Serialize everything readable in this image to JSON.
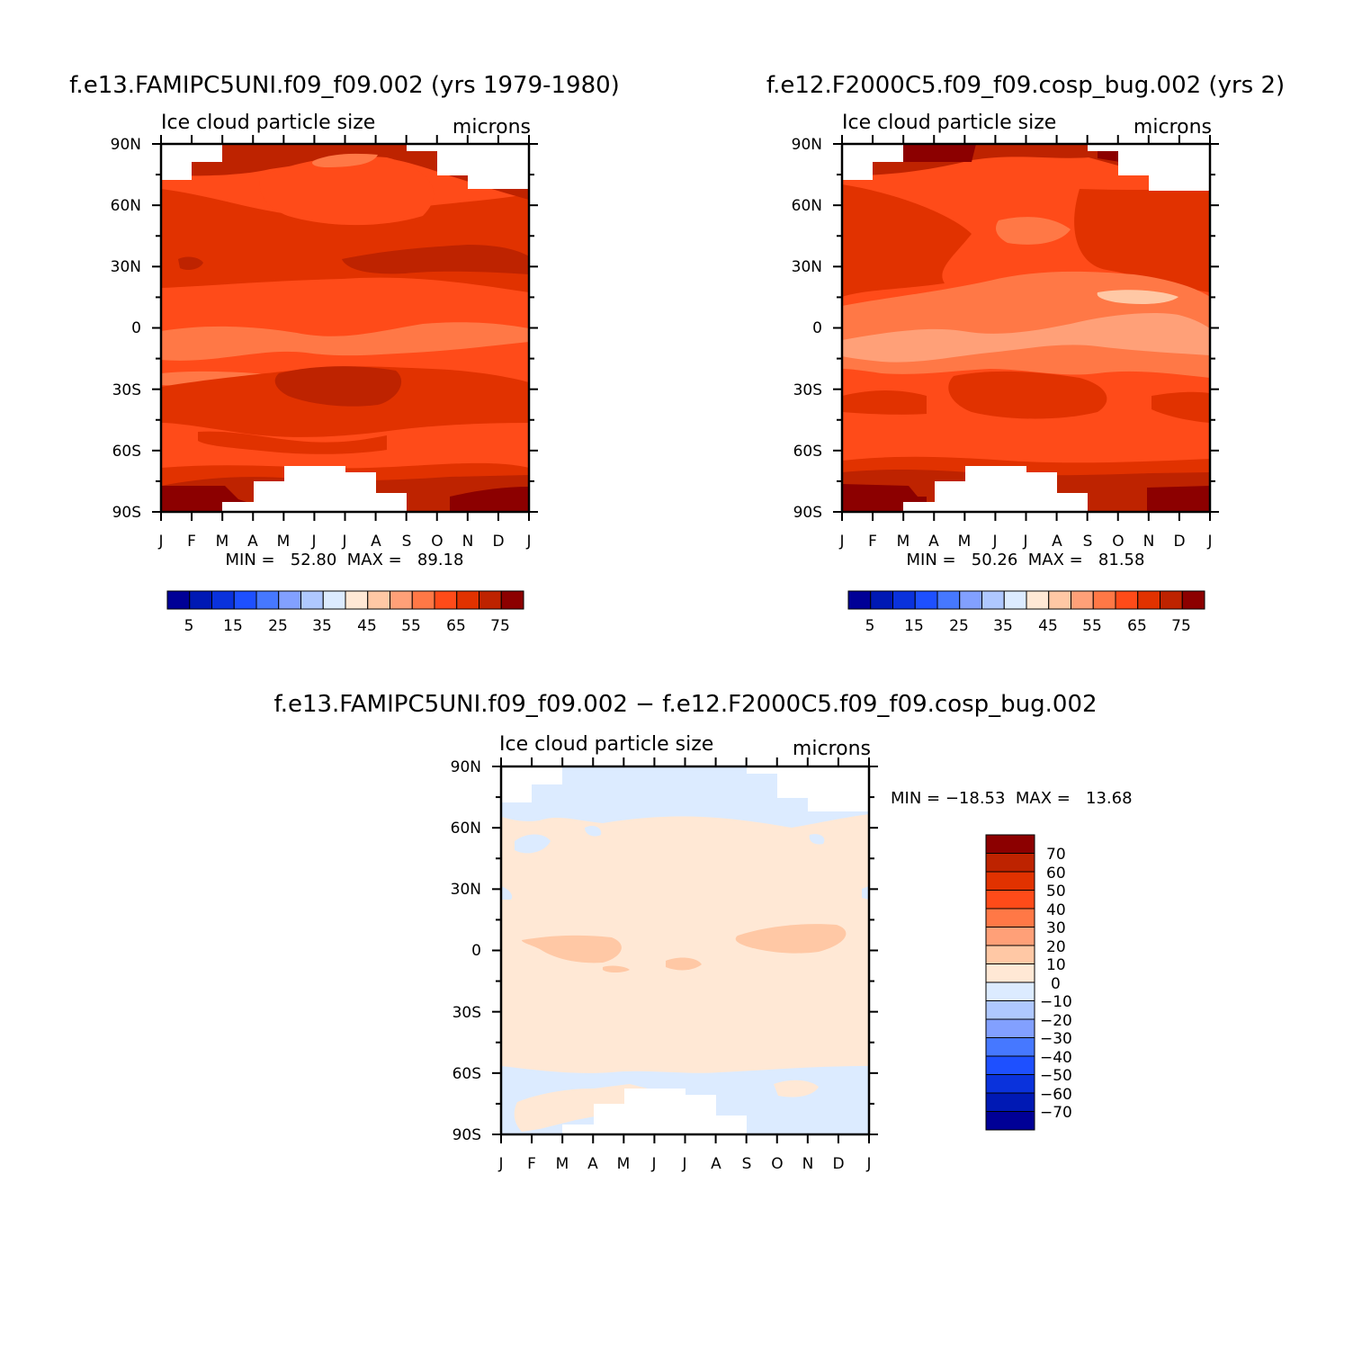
{
  "colors": {
    "abs_palette": [
      "#000096",
      "#0019b4",
      "#0a32dc",
      "#1e50ff",
      "#4678ff",
      "#82a0ff",
      "#afc8ff",
      "#dcebff",
      "#ffe8d5",
      "#ffc8a5",
      "#ffa078",
      "#ff7846",
      "#ff4b19",
      "#e13200",
      "#be2300",
      "#8c0000"
    ],
    "diff_palette": [
      "#000096",
      "#0019b4",
      "#0a32dc",
      "#1e50ff",
      "#4678ff",
      "#82a0ff",
      "#afc8ff",
      "#dcebff",
      "#ffe8d5",
      "#ffc8a5",
      "#ffa078",
      "#ff7846",
      "#ff4b19",
      "#e13200",
      "#be2300",
      "#8c0000"
    ]
  },
  "chart_data": [
    {
      "id": "panel-a",
      "type": "heatmap",
      "title": "f.e13.FAMIPC5UNI.f09_f09.002 (yrs 1979-1980)",
      "left_label": "Ice cloud particle size",
      "right_label": "microns",
      "x_ticks": [
        "J",
        "F",
        "M",
        "A",
        "M",
        "J",
        "J",
        "A",
        "S",
        "O",
        "N",
        "D",
        "J"
      ],
      "y_ticks": [
        "90N",
        "60N",
        "30N",
        "0",
        "30S",
        "60S",
        "90S"
      ],
      "y_range": [
        -90,
        90
      ],
      "stats": "MIN =   52.80  MAX =   89.18",
      "min": 52.8,
      "max": 89.18,
      "levels": [
        "5",
        "15",
        "25",
        "35",
        "45",
        "55",
        "65",
        "75"
      ],
      "legend_placement": "bottom"
    },
    {
      "id": "panel-b",
      "type": "heatmap",
      "title": "f.e12.F2000C5.f09_f09.cosp_bug.002 (yrs 2)",
      "left_label": "Ice cloud particle size",
      "right_label": "microns",
      "x_ticks": [
        "J",
        "F",
        "M",
        "A",
        "M",
        "J",
        "J",
        "A",
        "S",
        "O",
        "N",
        "D",
        "J"
      ],
      "y_ticks": [
        "90N",
        "60N",
        "30N",
        "0",
        "30S",
        "60S",
        "90S"
      ],
      "y_range": [
        -90,
        90
      ],
      "stats": "MIN =   50.26  MAX =   81.58",
      "min": 50.26,
      "max": 81.58,
      "levels": [
        "5",
        "15",
        "25",
        "35",
        "45",
        "55",
        "65",
        "75"
      ],
      "legend_placement": "bottom"
    },
    {
      "id": "panel-c",
      "type": "heatmap",
      "title": "f.e13.FAMIPC5UNI.f09_f09.002 − f.e12.F2000C5.f09_f09.cosp_bug.002",
      "left_label": "Ice cloud particle size",
      "right_label": "microns",
      "x_ticks": [
        "J",
        "F",
        "M",
        "A",
        "M",
        "J",
        "J",
        "A",
        "S",
        "O",
        "N",
        "D",
        "J"
      ],
      "y_ticks": [
        "90N",
        "60N",
        "30N",
        "0",
        "30S",
        "60S",
        "90S"
      ],
      "y_range": [
        -90,
        90
      ],
      "stats": "MIN = −18.53  MAX =   13.68",
      "min": -18.53,
      "max": 13.68,
      "levels": [
        "70",
        "60",
        "50",
        "40",
        "30",
        "20",
        "10",
        "0",
        "−10",
        "−20",
        "−30",
        "−40",
        "−50",
        "−60",
        "−70"
      ],
      "legend_placement": "right"
    }
  ]
}
